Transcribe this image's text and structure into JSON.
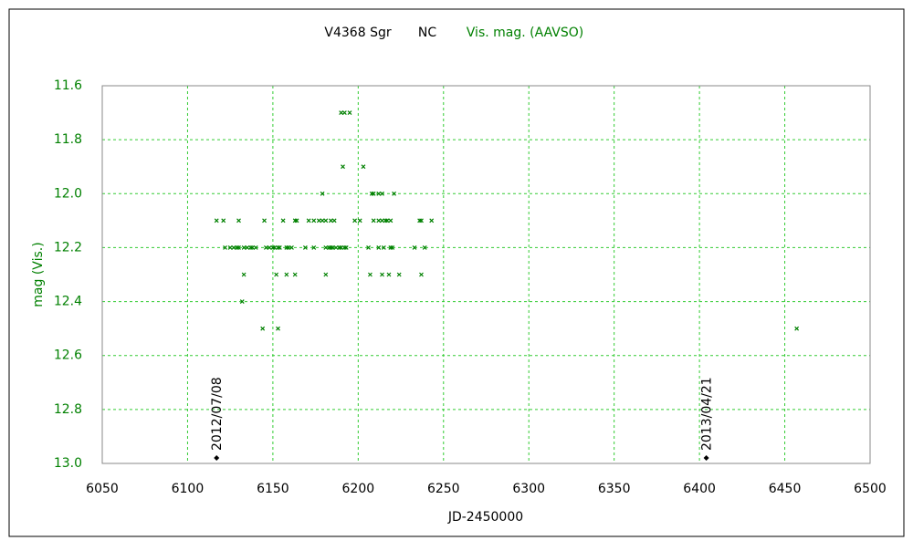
{
  "chart_data": {
    "type": "scatter",
    "title": "V4368 Sgr",
    "subtitle": "NC",
    "xlabel": "JD-2450000",
    "ylabel": "mag (Vis.)",
    "series": [
      {
        "name": "Vis. mag. (AAVSO)",
        "color": "#008000",
        "x": [
          6117,
          6121,
          6130,
          6145,
          6156,
          6163,
          6164,
          6171,
          6174,
          6177,
          6179,
          6181,
          6184,
          6186,
          6198,
          6201,
          6209,
          6212,
          6214,
          6216,
          6217,
          6219,
          6236,
          6237,
          6243,
          6122,
          6125,
          6127,
          6129,
          6130,
          6133,
          6135,
          6137,
          6138,
          6140,
          6146,
          6148,
          6150,
          6151,
          6153,
          6154,
          6158,
          6159,
          6161,
          6169,
          6174,
          6181,
          6183,
          6184,
          6185,
          6187,
          6189,
          6190,
          6192,
          6193,
          6206,
          6212,
          6215,
          6219,
          6220,
          6233,
          6239,
          6133,
          6152,
          6158,
          6163,
          6181,
          6207,
          6214,
          6218,
          6224,
          6237,
          6132,
          6144,
          6153,
          6457,
          6179,
          6208,
          6209,
          6212,
          6214,
          6221,
          6191,
          6203,
          6190,
          6192,
          6195
        ],
        "values": [
          12.1,
          12.1,
          12.1,
          12.1,
          12.1,
          12.1,
          12.1,
          12.1,
          12.1,
          12.1,
          12.1,
          12.1,
          12.1,
          12.1,
          12.1,
          12.1,
          12.1,
          12.1,
          12.1,
          12.1,
          12.1,
          12.1,
          12.1,
          12.1,
          12.1,
          12.2,
          12.2,
          12.2,
          12.2,
          12.2,
          12.2,
          12.2,
          12.2,
          12.2,
          12.2,
          12.2,
          12.2,
          12.2,
          12.2,
          12.2,
          12.2,
          12.2,
          12.2,
          12.2,
          12.2,
          12.2,
          12.2,
          12.2,
          12.2,
          12.2,
          12.2,
          12.2,
          12.2,
          12.2,
          12.2,
          12.2,
          12.2,
          12.2,
          12.2,
          12.2,
          12.2,
          12.2,
          12.3,
          12.3,
          12.3,
          12.3,
          12.3,
          12.3,
          12.3,
          12.3,
          12.3,
          12.3,
          12.4,
          12.5,
          12.5,
          12.5,
          12.0,
          12.0,
          12.0,
          12.0,
          12.0,
          12.0,
          11.9,
          11.9,
          11.7,
          11.7,
          11.7
        ]
      }
    ],
    "annotations": [
      {
        "label": "2012/07/08",
        "x": 6117
      },
      {
        "label": "2013/04/21",
        "x": 6404
      }
    ],
    "xlim": [
      6050,
      6500
    ],
    "xticks": [
      6050,
      6100,
      6150,
      6200,
      6250,
      6300,
      6350,
      6400,
      6450,
      6500
    ],
    "ylim": [
      13,
      11.6
    ],
    "yticks": [
      {
        "value": 13,
        "label": "13.0"
      },
      12.8,
      12.6,
      12.4,
      12.2,
      {
        "value": 12,
        "label": "12.0"
      },
      11.8,
      11.6
    ],
    "grid": true,
    "grid_color": "#33cc33"
  }
}
